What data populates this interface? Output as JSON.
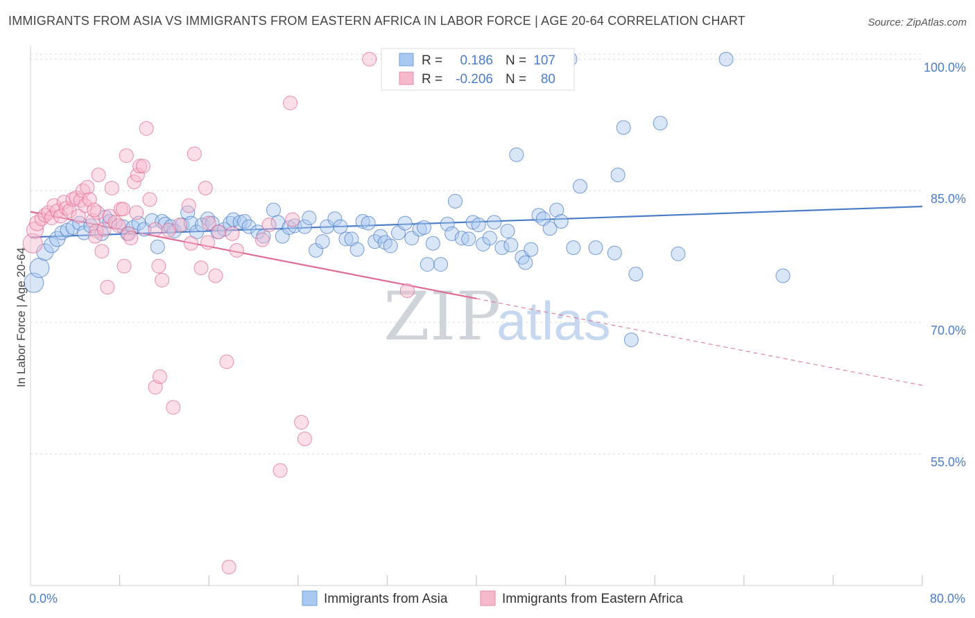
{
  "title": "IMMIGRANTS FROM ASIA VS IMMIGRANTS FROM EASTERN AFRICA IN LABOR FORCE | AGE 20-64 CORRELATION CHART",
  "source": "Source: ZipAtlas.com",
  "watermark": {
    "zip": "ZIP",
    "atlas": "atlas"
  },
  "colors": {
    "blue": "#4a7cc7",
    "blue_fill": "#a9c8ef",
    "pink": "#e06b92",
    "pink_fill": "#f6b8cb"
  },
  "legend_box": {
    "rows": [
      {
        "r_label": "R =",
        "r_value": "0.186",
        "n_label": "N =",
        "n_value": "107"
      },
      {
        "r_label": "R =",
        "r_value": "-0.206",
        "n_label": "N =",
        "n_value": "80"
      }
    ]
  },
  "chart_data": {
    "type": "scatter",
    "ylabel": "In Labor Force | Age 20-64",
    "xlim": [
      0,
      80
    ],
    "ylim": [
      40,
      102
    ],
    "y_ticks": [
      {
        "value": 100,
        "label": "100.0%"
      },
      {
        "value": 85,
        "label": "85.0%"
      },
      {
        "value": 70,
        "label": "70.0%"
      },
      {
        "value": 55,
        "label": "55.0%"
      }
    ],
    "x_ticks": [
      {
        "value": 0,
        "label": "0.0%"
      },
      {
        "value": 80,
        "label": "80.0%"
      }
    ],
    "x_minor_ticks": [
      8,
      16,
      24,
      32,
      40,
      48,
      56,
      64,
      72,
      80
    ],
    "series": [
      {
        "name": "Immigrants from Asia",
        "color": "blue",
        "trend": {
          "x0": 0,
          "y0": 79.7,
          "x1": 80,
          "y1": 83.2
        },
        "points": [
          [
            0.3,
            74.5,
            14
          ],
          [
            0.8,
            76.2,
            14
          ],
          [
            1.3,
            78,
            12
          ],
          [
            1.9,
            78.8,
            11
          ],
          [
            2.4,
            79.5,
            11
          ],
          [
            2.8,
            80.2,
            10
          ],
          [
            3.3,
            80.5,
            10
          ],
          [
            3.8,
            80.8,
            10
          ],
          [
            4.4,
            81.3,
            10
          ],
          [
            4.8,
            80.2,
            10
          ],
          [
            5.4,
            81,
            10
          ],
          [
            6.4,
            80.1,
            10
          ],
          [
            6.7,
            82,
            10
          ],
          [
            7.1,
            81.5,
            10
          ],
          [
            8.3,
            80.9,
            10
          ],
          [
            8.7,
            80.1,
            10
          ],
          [
            9.2,
            80.8,
            10
          ],
          [
            9.7,
            81.3,
            10
          ],
          [
            10.2,
            80.6,
            10
          ],
          [
            10.9,
            81.6,
            10
          ],
          [
            11.4,
            78.6,
            10
          ],
          [
            11.8,
            81.5,
            10
          ],
          [
            12.1,
            81.2,
            10
          ],
          [
            12.6,
            80.9,
            10
          ],
          [
            12.9,
            80.4,
            10
          ],
          [
            13.6,
            81.1,
            10
          ],
          [
            14.1,
            82.5,
            10
          ],
          [
            14.4,
            81.3,
            10
          ],
          [
            14.9,
            80.3,
            10
          ],
          [
            15.4,
            81.1,
            10
          ],
          [
            15.9,
            81.8,
            10
          ],
          [
            16.3,
            81.3,
            10
          ],
          [
            16.8,
            80.3,
            10
          ],
          [
            17.4,
            80.6,
            10
          ],
          [
            17.9,
            81.3,
            10
          ],
          [
            18.2,
            81.7,
            10
          ],
          [
            18.8,
            81.4,
            10
          ],
          [
            19.2,
            81.5,
            10
          ],
          [
            19.6,
            80.9,
            10
          ],
          [
            20.4,
            80.3,
            10
          ],
          [
            20.9,
            79.8,
            10
          ],
          [
            21.8,
            82.8,
            10
          ],
          [
            22.2,
            81.4,
            10
          ],
          [
            22.6,
            79.8,
            10
          ],
          [
            23.2,
            80.8,
            10
          ],
          [
            23.7,
            81,
            10
          ],
          [
            24.6,
            80.9,
            10
          ],
          [
            25.0,
            81.9,
            10
          ],
          [
            25.6,
            78.2,
            10
          ],
          [
            26.2,
            79.2,
            10
          ],
          [
            26.6,
            80.9,
            10
          ],
          [
            27.3,
            81.8,
            10
          ],
          [
            27.8,
            80.9,
            10
          ],
          [
            28.3,
            79.5,
            10
          ],
          [
            28.8,
            79.5,
            10
          ],
          [
            29.3,
            78.3,
            10
          ],
          [
            29.8,
            81.5,
            10
          ],
          [
            30.3,
            81.3,
            10
          ],
          [
            30.9,
            79.2,
            10
          ],
          [
            31.4,
            79.8,
            10
          ],
          [
            31.8,
            79.1,
            10
          ],
          [
            32.3,
            78.7,
            10
          ],
          [
            33.0,
            80.2,
            10
          ],
          [
            33.6,
            81.3,
            10
          ],
          [
            34.2,
            79.6,
            10
          ],
          [
            34.9,
            80.6,
            10
          ],
          [
            35.3,
            80.8,
            10
          ],
          [
            35.6,
            76.6,
            10
          ],
          [
            36.1,
            79,
            10
          ],
          [
            36.8,
            76.6,
            10
          ],
          [
            37.4,
            81.2,
            10
          ],
          [
            37.8,
            80.1,
            10
          ],
          [
            38.1,
            83.8,
            10
          ],
          [
            38.7,
            79.6,
            10
          ],
          [
            39.3,
            79.5,
            10
          ],
          [
            39.7,
            81.4,
            10
          ],
          [
            40.2,
            81.1,
            10
          ],
          [
            40.6,
            78.9,
            10
          ],
          [
            41.2,
            79.6,
            10
          ],
          [
            41.6,
            81.4,
            10
          ],
          [
            42.3,
            78.5,
            10
          ],
          [
            42.8,
            80.4,
            10
          ],
          [
            43.1,
            78.8,
            10
          ],
          [
            43.6,
            89.1,
            10
          ],
          [
            44.1,
            77.4,
            10
          ],
          [
            44.4,
            76.8,
            10
          ],
          [
            44.9,
            78.3,
            10
          ],
          [
            45.6,
            82.2,
            10
          ],
          [
            46.0,
            81.8,
            10
          ],
          [
            46.6,
            80.7,
            10
          ],
          [
            47.2,
            82.8,
            10
          ],
          [
            47.6,
            81.5,
            10
          ],
          [
            48.4,
            100,
            10
          ],
          [
            48.7,
            78.5,
            10
          ],
          [
            49.3,
            85.5,
            10
          ],
          [
            50.7,
            78.5,
            10
          ],
          [
            52.4,
            77.9,
            10
          ],
          [
            52.7,
            86.8,
            10
          ],
          [
            53.2,
            92.2,
            10
          ],
          [
            54.3,
            75.5,
            10
          ],
          [
            53.9,
            68.0,
            10
          ],
          [
            56.5,
            92.7,
            10
          ],
          [
            58.1,
            77.8,
            10
          ],
          [
            62.4,
            100,
            10
          ],
          [
            67.5,
            75.3,
            10
          ]
        ]
      },
      {
        "name": "Immigrants from Eastern Africa",
        "color": "pink",
        "trend": {
          "x0": 0,
          "y0": 82.6,
          "x1": 40,
          "y1": 72.7
        },
        "trend_dashed": {
          "x0": 40,
          "y0": 72.7,
          "x1": 80,
          "y1": 62.8
        },
        "points": [
          [
            0.2,
            79,
            14
          ],
          [
            0.4,
            80.5,
            12
          ],
          [
            0.6,
            81.3,
            11
          ],
          [
            1.0,
            81.8,
            10
          ],
          [
            1.3,
            82.2,
            10
          ],
          [
            1.6,
            82.5,
            10
          ],
          [
            1.9,
            81.9,
            10
          ],
          [
            2.1,
            83.3,
            10
          ],
          [
            2.4,
            82.7,
            10
          ],
          [
            2.7,
            82.1,
            10
          ],
          [
            3.0,
            83.7,
            10
          ],
          [
            3.2,
            83,
            10
          ],
          [
            3.5,
            82.7,
            10
          ],
          [
            3.8,
            84,
            10
          ],
          [
            4.1,
            84.2,
            10
          ],
          [
            4.3,
            82.1,
            10
          ],
          [
            4.5,
            83.9,
            10
          ],
          [
            4.7,
            85.0,
            10
          ],
          [
            4.9,
            83.3,
            10
          ],
          [
            5.1,
            85.4,
            10
          ],
          [
            5.3,
            84,
            10
          ],
          [
            5.6,
            81.6,
            10
          ],
          [
            5.9,
            80.4,
            10
          ],
          [
            6.0,
            82.5,
            10
          ],
          [
            5.7,
            82.8,
            10
          ],
          [
            6.4,
            78.1,
            10
          ],
          [
            5.8,
            79.8,
            10
          ],
          [
            6.1,
            86.8,
            10
          ],
          [
            6.6,
            80.6,
            10
          ],
          [
            6.9,
            74.0,
            10
          ],
          [
            7.1,
            82.1,
            10
          ],
          [
            7.3,
            85.3,
            10
          ],
          [
            7.6,
            81.4,
            10
          ],
          [
            7.9,
            81,
            10
          ],
          [
            8.1,
            82.9,
            10
          ],
          [
            8.4,
            76.4,
            10
          ],
          [
            8.3,
            82.9,
            10
          ],
          [
            8.6,
            89.0,
            10
          ],
          [
            8.8,
            80.1,
            10
          ],
          [
            9.0,
            79.6,
            10
          ],
          [
            9.3,
            86.0,
            10
          ],
          [
            9.5,
            82.5,
            10
          ],
          [
            9.6,
            86.8,
            10
          ],
          [
            9.8,
            87.8,
            10
          ],
          [
            10.1,
            87.8,
            10
          ],
          [
            10.4,
            92.1,
            10
          ],
          [
            10.7,
            84.0,
            10
          ],
          [
            11.2,
            80.6,
            10
          ],
          [
            11.5,
            76.4,
            10
          ],
          [
            11.8,
            74.8,
            10
          ],
          [
            11.2,
            62.6,
            10
          ],
          [
            11.6,
            63.8,
            10
          ],
          [
            12.4,
            80.5,
            10
          ],
          [
            12.8,
            60.3,
            10
          ],
          [
            13.4,
            81.1,
            10
          ],
          [
            14.2,
            83.3,
            10
          ],
          [
            14.4,
            79,
            10
          ],
          [
            14.7,
            89.2,
            10
          ],
          [
            15.3,
            76.2,
            10
          ],
          [
            15.7,
            85.3,
            10
          ],
          [
            15.9,
            79.1,
            10
          ],
          [
            16.0,
            81.3,
            10
          ],
          [
            16.6,
            75.3,
            10
          ],
          [
            16.9,
            80.3,
            10
          ],
          [
            17.6,
            65.5,
            10
          ],
          [
            17.8,
            42.1,
            10
          ],
          [
            18.1,
            80.1,
            10
          ],
          [
            18.5,
            78.2,
            10
          ],
          [
            20.8,
            79.4,
            10
          ],
          [
            21.4,
            81.1,
            10
          ],
          [
            22.4,
            53.1,
            10
          ],
          [
            23.3,
            95.0,
            10
          ],
          [
            23.5,
            81.7,
            10
          ],
          [
            24.3,
            58.6,
            10
          ],
          [
            24.6,
            56.7,
            10
          ],
          [
            30.4,
            100,
            10
          ],
          [
            33.3,
            100,
            10
          ],
          [
            33.8,
            73.6,
            10
          ]
        ]
      }
    ]
  },
  "legend": [
    {
      "label": "Immigrants from Asia",
      "color": "blue"
    },
    {
      "label": "Immigrants from Eastern Africa",
      "color": "pink"
    }
  ]
}
